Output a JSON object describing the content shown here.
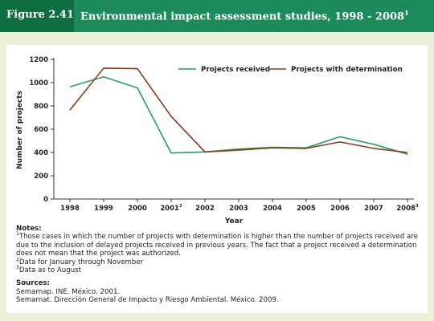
{
  "header": {
    "figure_label": "Figure 2.41",
    "title": "Environmental impact assessment studies, 1998 - 2008",
    "title_sup": "1"
  },
  "colors": {
    "header_bg": "#1c8a5a",
    "tab_bg": "#0f6e41",
    "frame_bg": "#ebf2d8",
    "received": "#1fa06a",
    "determination": "#8b3a17"
  },
  "chart_data": {
    "type": "line",
    "xlabel": "Year",
    "ylabel": "Number of projects",
    "ylim": [
      0,
      1200
    ],
    "yticks": [
      0,
      200,
      400,
      600,
      800,
      1000,
      1200
    ],
    "categories": [
      "1998",
      "1999",
      "2000",
      "2001",
      "2002",
      "2003",
      "2004",
      "2005",
      "2006",
      "2007",
      "2008"
    ],
    "category_sups": [
      "",
      "",
      "",
      "2",
      "",
      "",
      "",
      "",
      "",
      "",
      "3"
    ],
    "legend_position": "top-right",
    "grid": false,
    "series": [
      {
        "name": "Projects received",
        "color": "#1fa06a",
        "values": [
          965,
          1050,
          955,
          395,
          405,
          430,
          445,
          440,
          535,
          470,
          385
        ]
      },
      {
        "name": "Projects with determination",
        "color": "#8b3a17",
        "values": [
          765,
          1125,
          1120,
          710,
          405,
          420,
          440,
          435,
          490,
          435,
          400
        ]
      }
    ]
  },
  "notes": {
    "heading": "Notes:",
    "items": [
      {
        "sup": "1",
        "text": "Those cases in which the number of projects with determination is higher than the number of projects received are due to the inclusion of delayed projects received in previous years. The fact that a project received a determination does not mean that the project was authorized."
      },
      {
        "sup": "2",
        "text": "Data for January through November"
      },
      {
        "sup": "3",
        "text": "Data as to August"
      }
    ]
  },
  "sources": {
    "heading": "Sources:",
    "items": [
      "Semarnap. INE. México. 2001.",
      "Semarnat. Dirección General de Impacto y Riesgo Ambiental. México. 2009."
    ]
  }
}
